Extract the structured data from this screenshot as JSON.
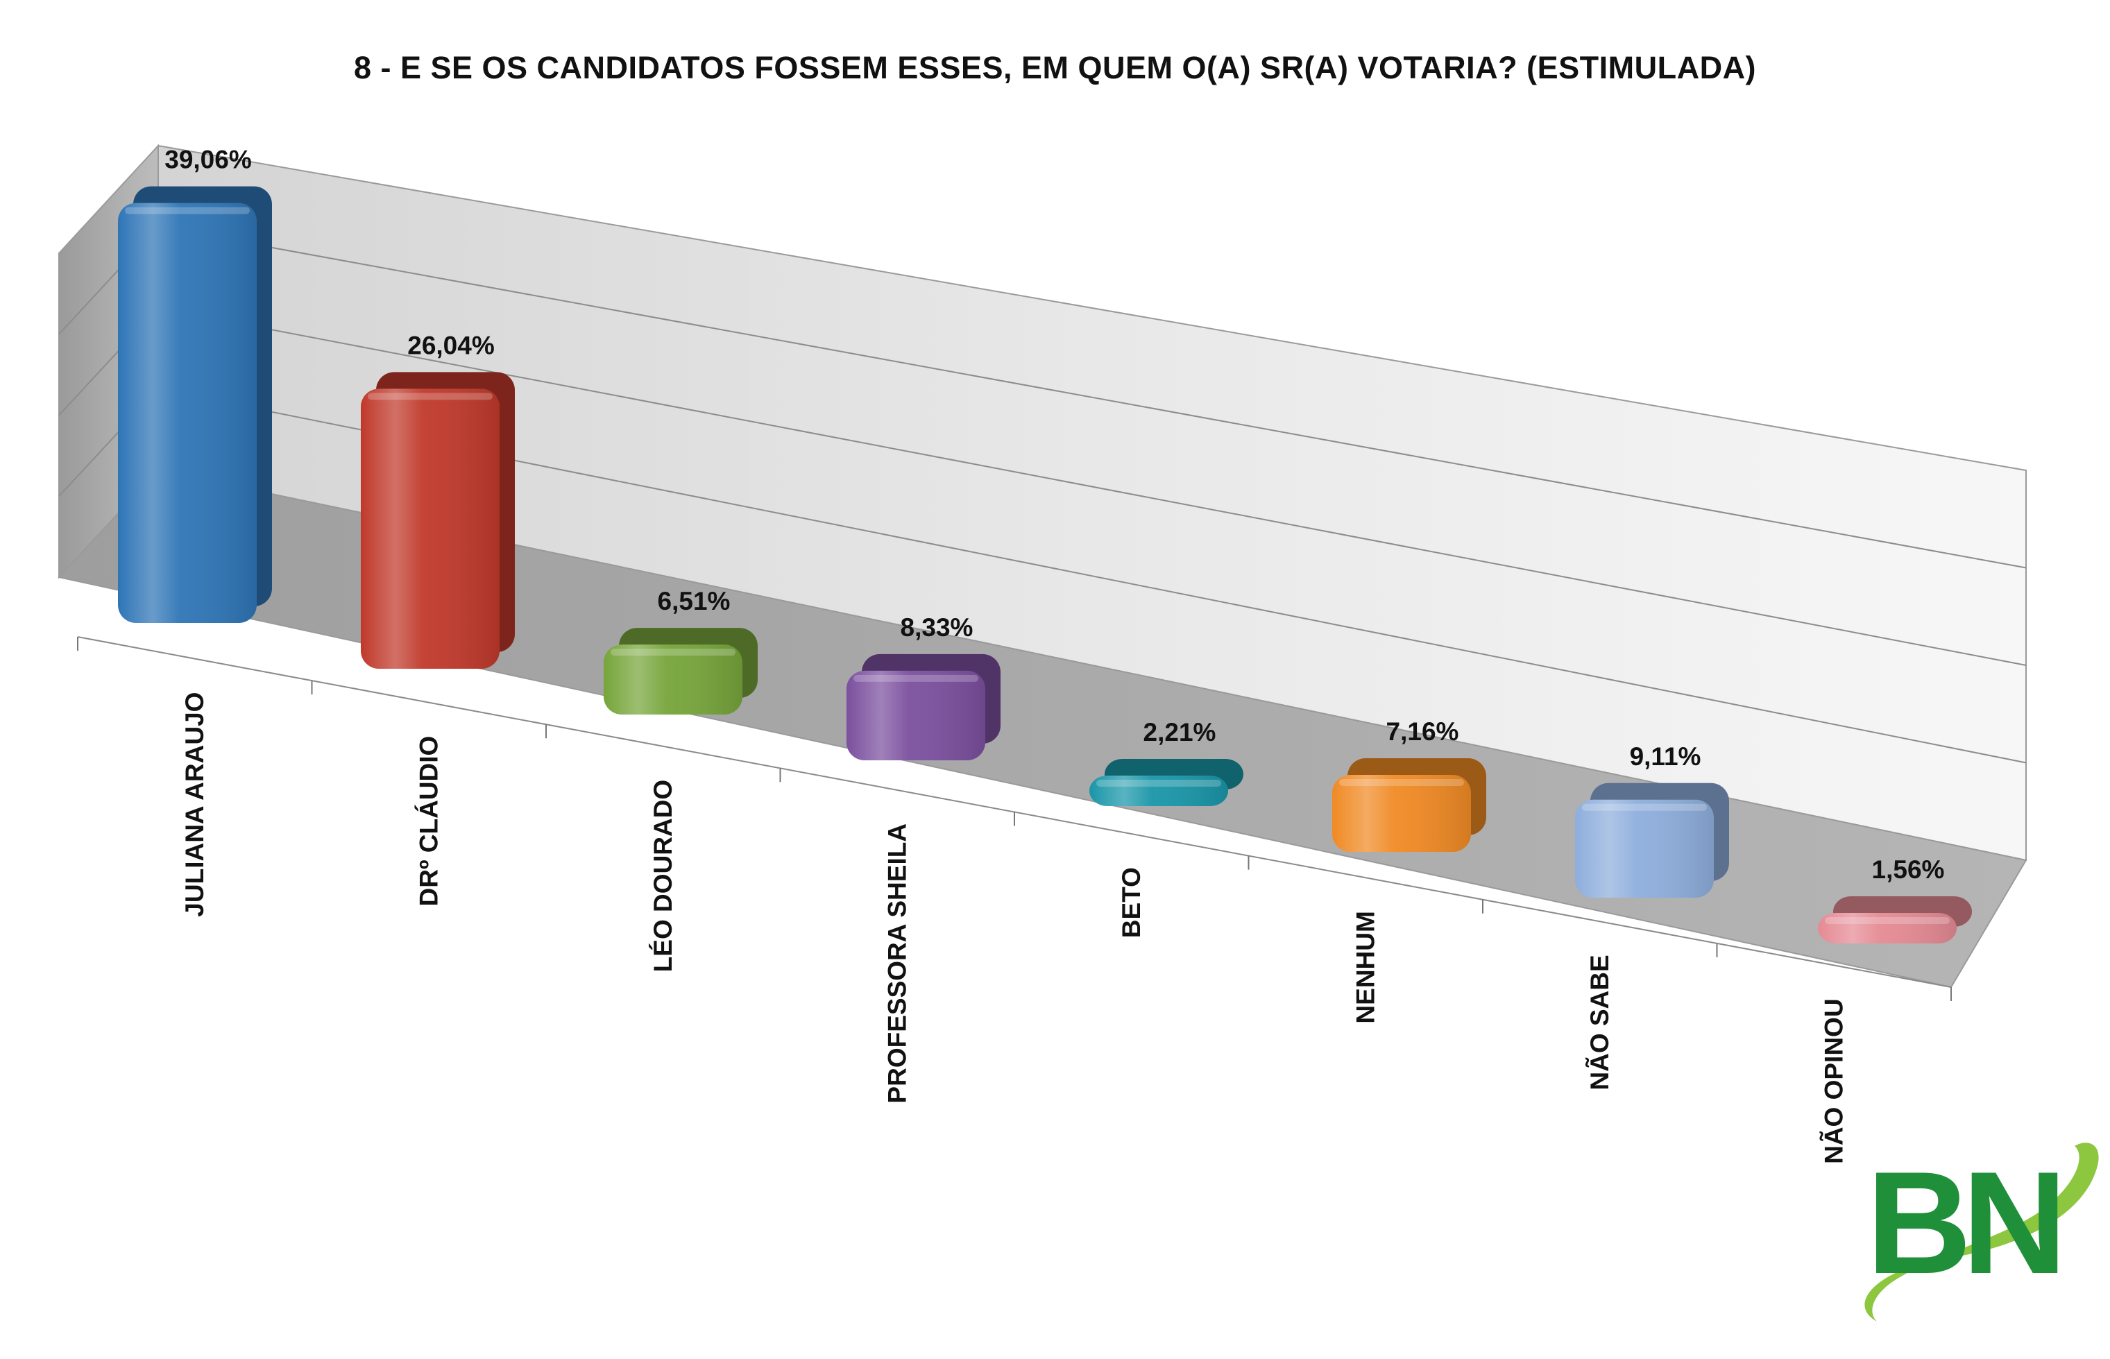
{
  "chart_data": {
    "type": "bar",
    "title": "8 - E SE OS CANDIDATOS FOSSEM ESSES, EM QUEM O(A) SR(A) VOTARIA? (ESTIMULADA)",
    "categories": [
      "JULIANA ARAUJO",
      "DRº CLÁUDIO",
      "LÉO DOURADO",
      "PROFESSORA SHEILA",
      "BETO",
      "NENHUM",
      "NÃO SABE",
      "NÃO OPINOU"
    ],
    "values": [
      39.06,
      26.04,
      6.51,
      8.33,
      2.21,
      7.16,
      9.11,
      1.56
    ],
    "value_labels": [
      "39,06%",
      "26,04%",
      "6,51%",
      "8,33%",
      "2,21%",
      "7,16%",
      "9,11%",
      "1,56%"
    ],
    "colors": [
      "#2E75B6",
      "#C0392B",
      "#76A53A",
      "#7B4F9E",
      "#1996A8",
      "#F08A24",
      "#8EAEDC",
      "#E58A94"
    ],
    "ylim": [
      0,
      40
    ],
    "grid": true,
    "style": "3d-perspective"
  },
  "logo": {
    "text": "BN",
    "color": "#1F8F3A",
    "swoosh_color": "#8DC63F"
  }
}
